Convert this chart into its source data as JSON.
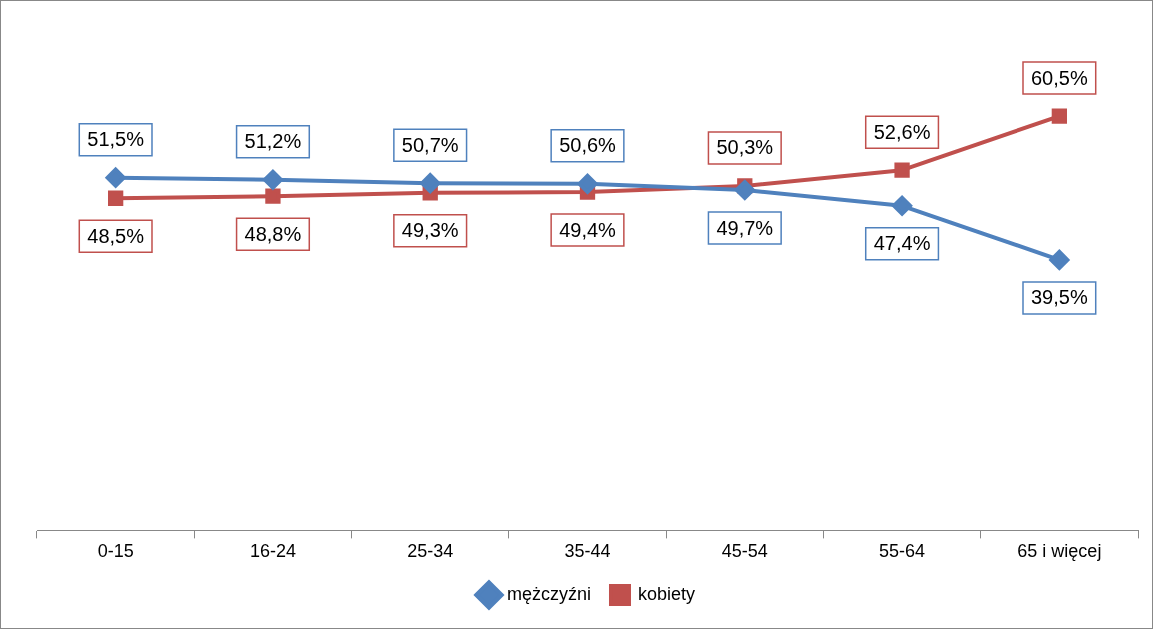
{
  "chart_data": {
    "type": "line",
    "categories": [
      "0-15",
      "16-24",
      "25-34",
      "35-44",
      "45-54",
      "55-64",
      "65 i więcej"
    ],
    "series": [
      {
        "name": "mężczyźni",
        "color": "#4f81bd",
        "marker": "diamond",
        "values": [
          51.5,
          51.2,
          50.7,
          50.6,
          49.7,
          47.4,
          39.5
        ],
        "value_labels": [
          "51,5%",
          "51,2%",
          "50,7%",
          "50,6%",
          "49,7%",
          "47,4%",
          "39,5%"
        ]
      },
      {
        "name": "kobiety",
        "color": "#c0504d",
        "marker": "square",
        "values": [
          48.5,
          48.8,
          49.3,
          49.4,
          50.3,
          52.6,
          60.5
        ],
        "value_labels": [
          "48,5%",
          "48,8%",
          "49,3%",
          "49,4%",
          "50,3%",
          "52,6%",
          "60,5%"
        ]
      }
    ],
    "tick_labels": "x",
    "grid": false,
    "legend": "bottom",
    "line_style": "solid"
  }
}
